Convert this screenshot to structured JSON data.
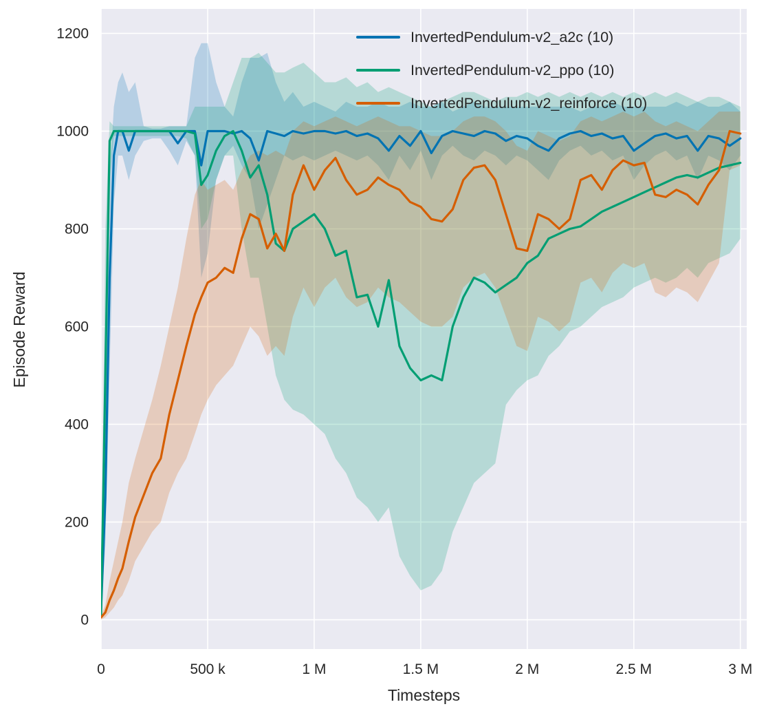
{
  "figure": {
    "background": "#ffffff",
    "plot_background": "#eaeaf2",
    "grid_color": "#ffffff",
    "text_color": "#262626"
  },
  "chart_data": {
    "type": "line",
    "title": "",
    "xlabel": "Timesteps",
    "ylabel": "Episode Reward",
    "grid": true,
    "legend_position": "upper center",
    "band_opacity": 0.22,
    "xlim": [
      0,
      3.03
    ],
    "ylim": [
      -60,
      1250
    ],
    "x_unit": "millions of timesteps",
    "xticks": [
      {
        "value": 0,
        "label": "0"
      },
      {
        "value": 0.5,
        "label": "500 k"
      },
      {
        "value": 1.0,
        "label": "1 M"
      },
      {
        "value": 1.5,
        "label": "1.5 M"
      },
      {
        "value": 2.0,
        "label": "2 M"
      },
      {
        "value": 2.5,
        "label": "2.5 M"
      },
      {
        "value": 3.0,
        "label": "3 M"
      }
    ],
    "yticks": [
      {
        "value": 0,
        "label": "0"
      },
      {
        "value": 200,
        "label": "200"
      },
      {
        "value": 400,
        "label": "400"
      },
      {
        "value": 600,
        "label": "600"
      },
      {
        "value": 800,
        "label": "800"
      },
      {
        "value": 1000,
        "label": "1000"
      },
      {
        "value": 1200,
        "label": "1200"
      }
    ],
    "x": [
      0,
      0.02,
      0.04,
      0.06,
      0.08,
      0.1,
      0.13,
      0.16,
      0.2,
      0.24,
      0.28,
      0.32,
      0.36,
      0.4,
      0.44,
      0.47,
      0.5,
      0.54,
      0.58,
      0.62,
      0.66,
      0.7,
      0.74,
      0.78,
      0.82,
      0.86,
      0.9,
      0.95,
      1.0,
      1.05,
      1.1,
      1.15,
      1.2,
      1.25,
      1.3,
      1.35,
      1.4,
      1.45,
      1.5,
      1.55,
      1.6,
      1.65,
      1.7,
      1.75,
      1.8,
      1.85,
      1.9,
      1.95,
      2.0,
      2.05,
      2.1,
      2.15,
      2.2,
      2.25,
      2.3,
      2.35,
      2.4,
      2.45,
      2.5,
      2.55,
      2.6,
      2.65,
      2.7,
      2.75,
      2.8,
      2.85,
      2.9,
      2.95,
      3.0
    ],
    "series": [
      {
        "name": "InvertedPendulum-v2_a2c (10)",
        "short": "a2c",
        "color": "#0173b2",
        "y": [
          20,
          250,
          700,
          950,
          1000,
          1000,
          960,
          1000,
          1000,
          1000,
          1000,
          1000,
          975,
          1000,
          1000,
          930,
          1000,
          1000,
          1000,
          995,
          1000,
          985,
          940,
          1000,
          995,
          990,
          1000,
          995,
          1000,
          1000,
          995,
          1000,
          990,
          995,
          985,
          960,
          990,
          970,
          1000,
          955,
          990,
          1000,
          995,
          990,
          1000,
          995,
          980,
          990,
          985,
          970,
          960,
          985,
          995,
          1000,
          990,
          995,
          985,
          990,
          960,
          975,
          990,
          995,
          985,
          990,
          960,
          990,
          985,
          970,
          985
        ],
        "lo": [
          15,
          150,
          500,
          850,
          950,
          950,
          900,
          950,
          980,
          985,
          985,
          960,
          930,
          980,
          950,
          700,
          750,
          900,
          950,
          970,
          930,
          900,
          800,
          850,
          900,
          950,
          940,
          950,
          940,
          950,
          960,
          950,
          940,
          950,
          930,
          900,
          950,
          920,
          960,
          900,
          950,
          970,
          950,
          940,
          960,
          950,
          930,
          950,
          940,
          920,
          900,
          940,
          960,
          970,
          950,
          960,
          940,
          950,
          900,
          930,
          950,
          960,
          940,
          950,
          900,
          950,
          940,
          920,
          950
        ],
        "hi": [
          25,
          400,
          900,
          1050,
          1100,
          1120,
          1080,
          1100,
          1010,
          1005,
          1005,
          1010,
          1010,
          1010,
          1150,
          1180,
          1180,
          1100,
          1050,
          1030,
          1100,
          1150,
          1150,
          1160,
          1100,
          1060,
          1080,
          1050,
          1060,
          1050,
          1040,
          1060,
          1050,
          1050,
          1060,
          1050,
          1050,
          1060,
          1050,
          1050,
          1060,
          1040,
          1050,
          1060,
          1050,
          1050,
          1050,
          1050,
          1050,
          1050,
          1050,
          1050,
          1050,
          1040,
          1050,
          1050,
          1060,
          1050,
          1050,
          1050,
          1050,
          1050,
          1060,
          1050,
          1060,
          1050,
          1050,
          1060,
          1040
        ]
      },
      {
        "name": "InvertedPendulum-v2_ppo (10)",
        "short": "ppo",
        "color": "#029e73",
        "y": [
          10,
          500,
          980,
          1000,
          1000,
          1000,
          1000,
          1000,
          1000,
          1000,
          1000,
          1000,
          1000,
          1000,
          995,
          890,
          910,
          960,
          990,
          1000,
          960,
          905,
          930,
          870,
          770,
          755,
          800,
          815,
          830,
          800,
          745,
          755,
          660,
          665,
          600,
          695,
          560,
          515,
          490,
          500,
          490,
          600,
          660,
          700,
          690,
          670,
          685,
          700,
          730,
          745,
          780,
          790,
          800,
          805,
          820,
          835,
          845,
          855,
          865,
          875,
          885,
          895,
          905,
          910,
          905,
          915,
          925,
          930,
          935
        ],
        "lo": [
          5,
          300,
          900,
          990,
          990,
          990,
          990,
          990,
          990,
          990,
          990,
          990,
          990,
          985,
          950,
          800,
          820,
          900,
          950,
          950,
          800,
          700,
          700,
          600,
          500,
          450,
          430,
          420,
          400,
          380,
          330,
          300,
          250,
          230,
          200,
          230,
          130,
          90,
          60,
          70,
          100,
          180,
          230,
          280,
          300,
          320,
          440,
          470,
          490,
          500,
          540,
          560,
          590,
          600,
          620,
          640,
          650,
          660,
          680,
          690,
          700,
          690,
          700,
          720,
          700,
          730,
          740,
          750,
          780
        ],
        "hi": [
          20,
          800,
          1020,
          1010,
          1010,
          1010,
          1010,
          1010,
          1010,
          1010,
          1010,
          1010,
          1010,
          1010,
          1050,
          1050,
          1050,
          1050,
          1050,
          1100,
          1150,
          1150,
          1160,
          1140,
          1120,
          1120,
          1130,
          1140,
          1120,
          1100,
          1100,
          1110,
          1090,
          1100,
          1080,
          1090,
          1080,
          1070,
          1060,
          1050,
          1060,
          1070,
          1080,
          1080,
          1070,
          1060,
          1070,
          1070,
          1080,
          1070,
          1080,
          1070,
          1080,
          1070,
          1080,
          1070,
          1080,
          1070,
          1080,
          1070,
          1080,
          1070,
          1080,
          1070,
          1060,
          1070,
          1070,
          1060,
          1050
        ]
      },
      {
        "name": "InvertedPendulum-v2_reinforce (10)",
        "short": "reinforce",
        "color": "#d55e00",
        "y": [
          5,
          15,
          40,
          60,
          85,
          105,
          160,
          210,
          255,
          300,
          330,
          420,
          490,
          560,
          625,
          660,
          690,
          700,
          720,
          710,
          780,
          830,
          820,
          760,
          790,
          755,
          870,
          930,
          880,
          920,
          945,
          900,
          870,
          880,
          905,
          890,
          880,
          855,
          845,
          820,
          815,
          840,
          900,
          925,
          930,
          900,
          830,
          760,
          755,
          830,
          820,
          800,
          820,
          900,
          910,
          880,
          920,
          940,
          930,
          935,
          870,
          865,
          880,
          870,
          850,
          890,
          920,
          1000,
          995
        ],
        "lo": [
          0,
          5,
          15,
          25,
          40,
          50,
          80,
          120,
          150,
          180,
          200,
          260,
          300,
          330,
          380,
          420,
          450,
          480,
          500,
          520,
          560,
          600,
          580,
          540,
          560,
          540,
          620,
          680,
          640,
          680,
          700,
          660,
          640,
          650,
          680,
          660,
          650,
          630,
          610,
          600,
          600,
          620,
          680,
          700,
          710,
          680,
          620,
          560,
          550,
          620,
          610,
          590,
          610,
          690,
          700,
          670,
          710,
          730,
          720,
          730,
          670,
          660,
          680,
          670,
          650,
          690,
          730,
          920,
          930
        ],
        "hi": [
          10,
          30,
          80,
          120,
          160,
          200,
          280,
          330,
          390,
          450,
          520,
          600,
          680,
          780,
          870,
          900,
          880,
          890,
          900,
          880,
          920,
          950,
          960,
          950,
          960,
          950,
          1000,
          1020,
          1010,
          1020,
          1030,
          1020,
          1010,
          1020,
          1030,
          1020,
          1010,
          1010,
          1000,
          990,
          990,
          1000,
          1020,
          1030,
          1030,
          1020,
          1000,
          970,
          960,
          1000,
          990,
          980,
          990,
          1020,
          1030,
          1020,
          1030,
          1040,
          1030,
          1040,
          1020,
          1010,
          1020,
          1010,
          1000,
          1020,
          1040,
          1040,
          1040
        ]
      }
    ]
  }
}
